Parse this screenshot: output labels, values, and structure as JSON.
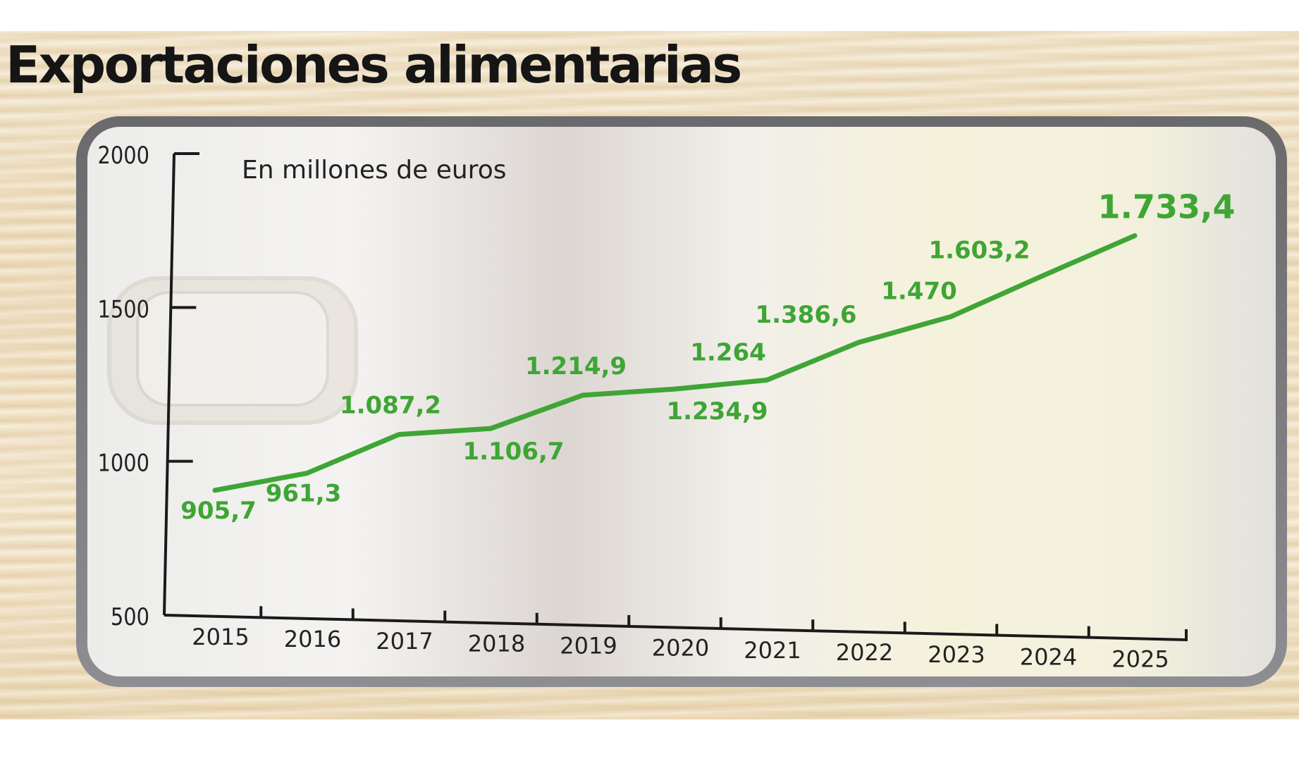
{
  "title": "Exportaciones alimentarias",
  "colors": {
    "line": "#3fa535",
    "label": "#3fa535",
    "axis": "#1a1a1a",
    "title": "#151515"
  },
  "chart_data": {
    "type": "line",
    "title": "Exportaciones alimentarias",
    "subtitle": "En millones de euros",
    "x": [
      "2015",
      "2016",
      "2017",
      "2018",
      "2019",
      "2020",
      "2021",
      "2022",
      "2023",
      "2024",
      "2025"
    ],
    "values": [
      905.7,
      961.3,
      1087.2,
      1106.7,
      1214.9,
      1234.9,
      1264,
      1386.6,
      1470,
      1603.2,
      1733.4
    ],
    "value_labels": [
      "905,7",
      "961,3",
      "1.087,2",
      "1.106,7",
      "1.214,9",
      "1.234,9",
      "1.264",
      "1.386,6",
      "1.470",
      "1.603,2",
      "1.733,4"
    ],
    "yticks": [
      "2000",
      "1500",
      "1000",
      "500"
    ],
    "ylim": [
      500,
      2000
    ],
    "grid": false,
    "legend": "none"
  }
}
